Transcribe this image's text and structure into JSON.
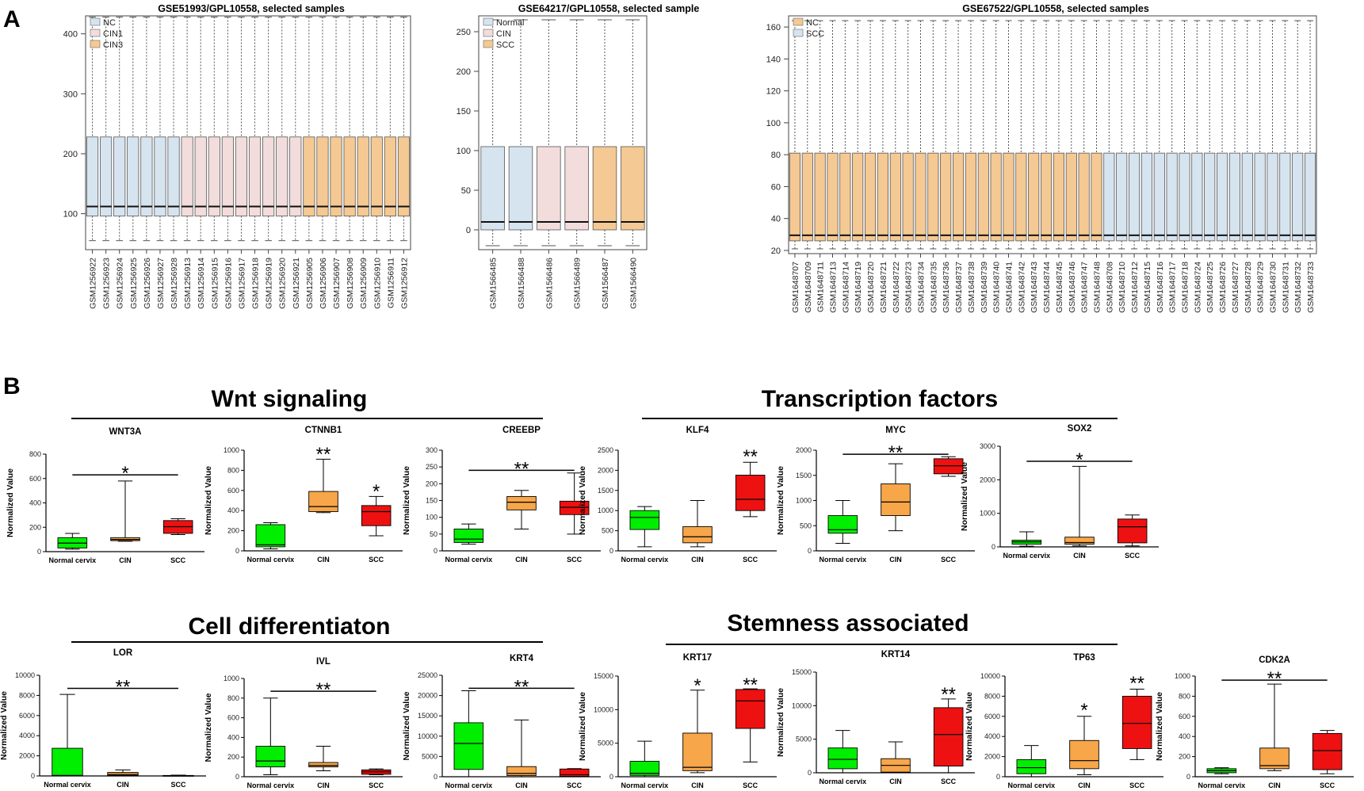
{
  "panels": {
    "A": "A",
    "B": "B"
  },
  "section_titles": {
    "wnt": "Wnt signaling",
    "tf": "Transcription factors",
    "diff": "Cell differentiaton",
    "stem": "Stemness associated"
  },
  "colors": {
    "NC": "#d6e4f0",
    "CIN1": "#f2dcdc",
    "CIN3": "#f5c993",
    "normal": "#00ee00",
    "cin": "#f7a649",
    "scc": "#ee1111"
  },
  "chart_data": [
    {
      "id": "A1",
      "type": "boxplot",
      "title": "GSE51993/GPL10558, selected samples",
      "ylim": [
        40,
        430
      ],
      "yticks": [
        100,
        200,
        300,
        400
      ],
      "legend": [
        {
          "label": "NC",
          "color": "NC"
        },
        {
          "label": "CIN1",
          "color": "CIN1"
        },
        {
          "label": "CIN3",
          "color": "CIN3"
        }
      ],
      "legend_position": "top-left",
      "box": {
        "wlo": 55,
        "q1": 96,
        "med": 112,
        "q3": 228,
        "whi": 428
      },
      "samples": [
        "GSM1256922",
        "GSM1256923",
        "GSM1256924",
        "GSM1256925",
        "GSM1256926",
        "GSM1256927",
        "GSM1256928",
        "GSM1256913",
        "GSM1256914",
        "GSM1256915",
        "GSM1256916",
        "GSM1256917",
        "GSM1256918",
        "GSM1256919",
        "GSM1256920",
        "GSM1256921",
        "GSM1256905",
        "GSM1256906",
        "GSM1256907",
        "GSM1256908",
        "GSM1256909",
        "GSM1256910",
        "GSM1256911",
        "GSM1256912"
      ],
      "groups": [
        "NC",
        "NC",
        "NC",
        "NC",
        "NC",
        "NC",
        "NC",
        "CIN1",
        "CIN1",
        "CIN1",
        "CIN1",
        "CIN1",
        "CIN1",
        "CIN1",
        "CIN1",
        "CIN1",
        "CIN3",
        "CIN3",
        "CIN3",
        "CIN3",
        "CIN3",
        "CIN3",
        "CIN3",
        "CIN3"
      ]
    },
    {
      "id": "A2",
      "type": "boxplot",
      "title": "GSE64217/GPL10558, selected sample",
      "ylim": [
        -25,
        270
      ],
      "yticks": [
        0,
        50,
        100,
        150,
        200,
        250
      ],
      "legend": [
        {
          "label": "Normal",
          "color": "NC"
        },
        {
          "label": "CIN",
          "color": "CIN1"
        },
        {
          "label": "SCC",
          "color": "CIN3"
        }
      ],
      "legend_position": "top-left",
      "box": {
        "wlo": -20,
        "q1": 0,
        "med": 10,
        "q3": 105,
        "whi": 265
      },
      "samples": [
        "GSM1566485",
        "GSM1566488",
        "GSM1566486",
        "GSM1566489",
        "GSM1566487",
        "GSM1566490"
      ],
      "groups": [
        "NC",
        "NC",
        "CIN1",
        "CIN1",
        "CIN3",
        "CIN3"
      ]
    },
    {
      "id": "A3",
      "type": "boxplot",
      "title": "GSE67522/GPL10558, selected samples",
      "ylim": [
        18,
        167
      ],
      "yticks": [
        20,
        40,
        60,
        80,
        100,
        120,
        140,
        160
      ],
      "legend": [
        {
          "label": "NC",
          "color": "CIN3"
        },
        {
          "label": "SCC",
          "color": "NC"
        }
      ],
      "legend_position": "top-left",
      "box": {
        "wlo": 21,
        "q1": 26,
        "med": 29.5,
        "q3": 81,
        "whi": 164
      },
      "samples": [
        "GSM1648707",
        "GSM1648709",
        "GSM1648711",
        "GSM1648713",
        "GSM1648714",
        "GSM1648719",
        "GSM1648720",
        "GSM1648721",
        "GSM1648722",
        "GSM1648723",
        "GSM1648734",
        "GSM1648735",
        "GSM1648736",
        "GSM1648737",
        "GSM1648738",
        "GSM1648739",
        "GSM1648740",
        "GSM1648741",
        "GSM1648742",
        "GSM1648743",
        "GSM1648744",
        "GSM1648745",
        "GSM1648746",
        "GSM1648747",
        "GSM1648748",
        "GSM1648708",
        "GSM1648710",
        "GSM1648712",
        "GSM1648715",
        "GSM1648716",
        "GSM1648717",
        "GSM1648718",
        "GSM1648724",
        "GSM1648725",
        "GSM1648726",
        "GSM1648727",
        "GSM1648728",
        "GSM1648729",
        "GSM1648730",
        "GSM1648731",
        "GSM1648732",
        "GSM1648733"
      ],
      "groups": [
        "CIN3",
        "CIN3",
        "CIN3",
        "CIN3",
        "CIN3",
        "CIN3",
        "CIN3",
        "CIN3",
        "CIN3",
        "CIN3",
        "CIN3",
        "CIN3",
        "CIN3",
        "CIN3",
        "CIN3",
        "CIN3",
        "CIN3",
        "CIN3",
        "CIN3",
        "CIN3",
        "CIN3",
        "CIN3",
        "CIN3",
        "CIN3",
        "CIN3",
        "NC",
        "NC",
        "NC",
        "NC",
        "NC",
        "NC",
        "NC",
        "NC",
        "NC",
        "NC",
        "NC",
        "NC",
        "NC",
        "NC",
        "NC",
        "NC",
        "NC"
      ]
    },
    {
      "id": "WNT3A",
      "type": "boxplot",
      "title": "WNT3A",
      "ylabel": "Normalized Value",
      "categories": [
        "Normal cervix",
        "CIN",
        "SCC"
      ],
      "ylim": [
        0,
        800
      ],
      "yticks": [
        0,
        200,
        400,
        600,
        800
      ],
      "boxes": [
        {
          "wlo": 20,
          "q1": 30,
          "med": 70,
          "q3": 115,
          "whi": 150
        },
        {
          "wlo": 85,
          "q1": 90,
          "med": 100,
          "q3": 115,
          "whi": 580
        },
        {
          "wlo": 140,
          "q1": 150,
          "med": 205,
          "q3": 255,
          "whi": 270
        }
      ],
      "significance": [
        {
          "text": "*",
          "type": "line",
          "value": 630
        }
      ]
    },
    {
      "id": "CTNNB1",
      "type": "boxplot",
      "title": "CTNNB1",
      "ylabel": "Normalized Value",
      "categories": [
        "Normal cervix",
        "CIN",
        "SCC"
      ],
      "ylim": [
        0,
        1000
      ],
      "yticks": [
        0,
        200,
        400,
        600,
        800,
        1000
      ],
      "boxes": [
        {
          "wlo": 20,
          "q1": 40,
          "med": 60,
          "q3": 260,
          "whi": 280
        },
        {
          "wlo": 380,
          "q1": 390,
          "med": 440,
          "q3": 590,
          "whi": 910
        },
        {
          "wlo": 150,
          "q1": 250,
          "med": 390,
          "q3": 450,
          "whi": 540
        }
      ],
      "significance": [
        {
          "text": "**",
          "type": "over",
          "index": 1,
          "value": 960
        },
        {
          "text": "*",
          "type": "over",
          "index": 2,
          "value": 590
        }
      ]
    },
    {
      "id": "CREEBP",
      "type": "boxplot",
      "title": "CREEBP",
      "ylabel": "Normalized Value",
      "categories": [
        "Normal cervix",
        "CIN",
        "SCC"
      ],
      "ylim": [
        0,
        300
      ],
      "yticks": [
        0,
        50,
        100,
        150,
        200,
        250,
        300
      ],
      "boxes": [
        {
          "wlo": 20,
          "q1": 25,
          "med": 35,
          "q3": 65,
          "whi": 80
        },
        {
          "wlo": 65,
          "q1": 122,
          "med": 145,
          "q3": 162,
          "whi": 180
        },
        {
          "wlo": 50,
          "q1": 108,
          "med": 130,
          "q3": 148,
          "whi": 232
        }
      ],
      "significance": [
        {
          "text": "**",
          "type": "line",
          "value": 240
        }
      ]
    },
    {
      "id": "KLF4",
      "type": "boxplot",
      "title": "KLF4",
      "ylabel": "Normalized Value",
      "categories": [
        "Normal cervix",
        "CIN",
        "SCC"
      ],
      "ylim": [
        0,
        2500
      ],
      "yticks": [
        0,
        500,
        1000,
        1500,
        2000,
        2500
      ],
      "boxes": [
        {
          "wlo": 100,
          "q1": 530,
          "med": 830,
          "q3": 1000,
          "whi": 1100
        },
        {
          "wlo": 100,
          "q1": 200,
          "med": 350,
          "q3": 600,
          "whi": 1250
        },
        {
          "wlo": 850,
          "q1": 1000,
          "med": 1280,
          "q3": 1880,
          "whi": 2200
        }
      ],
      "significance": [
        {
          "text": "**",
          "type": "over",
          "index": 2,
          "value": 2340
        }
      ]
    },
    {
      "id": "MYC",
      "type": "boxplot",
      "title": "MYC",
      "ylabel": "Normalized Value",
      "categories": [
        "Normal cervix",
        "CIN",
        "SCC"
      ],
      "ylim": [
        0,
        2000
      ],
      "yticks": [
        0,
        500,
        1000,
        1500,
        2000
      ],
      "boxes": [
        {
          "wlo": 150,
          "q1": 350,
          "med": 420,
          "q3": 700,
          "whi": 1000
        },
        {
          "wlo": 400,
          "q1": 700,
          "med": 970,
          "q3": 1330,
          "whi": 1730
        },
        {
          "wlo": 1480,
          "q1": 1530,
          "med": 1690,
          "q3": 1830,
          "whi": 1870
        }
      ],
      "significance": [
        {
          "text": "**",
          "type": "line",
          "value": 1920
        }
      ]
    },
    {
      "id": "SOX2",
      "type": "boxplot",
      "title": "SOX2",
      "ylabel": "Normalized Value",
      "categories": [
        "Normal cervix",
        "CIN",
        "SCC"
      ],
      "ylim": [
        0,
        3000
      ],
      "yticks": [
        0,
        1000,
        2000,
        3000
      ],
      "boxes": [
        {
          "wlo": 20,
          "q1": 80,
          "med": 150,
          "q3": 200,
          "whi": 450
        },
        {
          "wlo": 30,
          "q1": 80,
          "med": 130,
          "q3": 290,
          "whi": 2400
        },
        {
          "wlo": 30,
          "q1": 120,
          "med": 600,
          "q3": 830,
          "whi": 950
        }
      ],
      "significance": [
        {
          "text": "*",
          "type": "line",
          "value": 2550
        }
      ]
    },
    {
      "id": "LOR",
      "type": "boxplot",
      "title": "LOR",
      "ylabel": "Normalized Value",
      "categories": [
        "Normal cervix",
        "CIN",
        "SCC"
      ],
      "ylim": [
        0,
        10000
      ],
      "yticks": [
        0,
        2000,
        4000,
        6000,
        8000,
        10000
      ],
      "boxes": [
        {
          "wlo": 0,
          "q1": 0,
          "med": 50,
          "q3": 2750,
          "whi": 8100
        },
        {
          "wlo": 0,
          "q1": 50,
          "med": 150,
          "q3": 350,
          "whi": 600
        },
        {
          "wlo": 0,
          "q1": 0,
          "med": 10,
          "q3": 50,
          "whi": 80
        }
      ],
      "significance": [
        {
          "text": "**",
          "type": "line",
          "value": 8700
        }
      ]
    },
    {
      "id": "IVL",
      "type": "boxplot",
      "title": "IVL",
      "ylabel": "Normalized Value",
      "categories": [
        "Normal cervix",
        "CIN",
        "SCC"
      ],
      "ylim": [
        0,
        1000
      ],
      "yticks": [
        0,
        200,
        400,
        600,
        800,
        1000
      ],
      "boxes": [
        {
          "wlo": 20,
          "q1": 100,
          "med": 160,
          "q3": 310,
          "whi": 800
        },
        {
          "wlo": 60,
          "q1": 100,
          "med": 115,
          "q3": 145,
          "whi": 310
        },
        {
          "wlo": 20,
          "q1": 25,
          "med": 50,
          "q3": 70,
          "whi": 80
        }
      ],
      "significance": [
        {
          "text": "**",
          "type": "line",
          "value": 870
        }
      ]
    },
    {
      "id": "KRT4",
      "type": "boxplot",
      "title": "KRT4",
      "ylabel": "Normalized Value",
      "categories": [
        "Normal cervix",
        "CIN",
        "SCC"
      ],
      "ylim": [
        0,
        25000
      ],
      "yticks": [
        0,
        5000,
        10000,
        15000,
        20000,
        25000
      ],
      "boxes": [
        {
          "wlo": 0,
          "q1": 1800,
          "med": 8200,
          "q3": 13300,
          "whi": 21200
        },
        {
          "wlo": 0,
          "q1": 300,
          "med": 800,
          "q3": 2500,
          "whi": 14000
        },
        {
          "wlo": 0,
          "q1": 100,
          "med": 500,
          "q3": 1900,
          "whi": 2000
        }
      ],
      "significance": [
        {
          "text": "**",
          "type": "line",
          "value": 21800
        }
      ]
    },
    {
      "id": "KRT17",
      "type": "boxplot",
      "title": "KRT17",
      "ylabel": "Normalized Value",
      "categories": [
        "Normal cervix",
        "CIN",
        "SCC"
      ],
      "ylim": [
        0,
        15000
      ],
      "yticks": [
        0,
        5000,
        10000,
        15000
      ],
      "boxes": [
        {
          "wlo": 0,
          "q1": 200,
          "med": 500,
          "q3": 2300,
          "whi": 5300
        },
        {
          "wlo": 600,
          "q1": 900,
          "med": 1400,
          "q3": 6500,
          "whi": 12900
        },
        {
          "wlo": 2200,
          "q1": 7200,
          "med": 11300,
          "q3": 13000,
          "whi": 13100
        }
      ],
      "significance": [
        {
          "text": "*",
          "type": "over",
          "index": 1,
          "value": 13600
        },
        {
          "text": "**",
          "type": "over",
          "index": 2,
          "value": 13700
        }
      ]
    },
    {
      "id": "KRT14",
      "type": "boxplot",
      "title": "KRT14",
      "ylabel": "Normalized Value",
      "categories": [
        "Normal cervix",
        "CIN",
        "SCC"
      ],
      "ylim": [
        0,
        15000
      ],
      "yticks": [
        0,
        5000,
        10000,
        15000
      ],
      "boxes": [
        {
          "wlo": 0,
          "q1": 600,
          "med": 2000,
          "q3": 3700,
          "whi": 6300
        },
        {
          "wlo": 0,
          "q1": 100,
          "med": 1100,
          "q3": 2100,
          "whi": 4600
        },
        {
          "wlo": 0,
          "q1": 1000,
          "med": 5700,
          "q3": 9700,
          "whi": 11000
        }
      ],
      "significance": [
        {
          "text": "**",
          "type": "over",
          "index": 2,
          "value": 11700
        }
      ]
    },
    {
      "id": "TP63",
      "type": "boxplot",
      "title": "TP63",
      "ylabel": "Normalized Value",
      "categories": [
        "Normal cervix",
        "CIN",
        "SCC"
      ],
      "ylim": [
        0,
        10000
      ],
      "yticks": [
        0,
        2000,
        4000,
        6000,
        8000,
        10000
      ],
      "boxes": [
        {
          "wlo": 0,
          "q1": 300,
          "med": 900,
          "q3": 1700,
          "whi": 3100
        },
        {
          "wlo": 200,
          "q1": 800,
          "med": 1600,
          "q3": 3600,
          "whi": 6000
        },
        {
          "wlo": 1700,
          "q1": 2800,
          "med": 5300,
          "q3": 8000,
          "whi": 8700
        }
      ],
      "significance": [
        {
          "text": "*",
          "type": "over",
          "index": 1,
          "value": 6600
        },
        {
          "text": "**",
          "type": "over",
          "index": 2,
          "value": 9300
        }
      ]
    },
    {
      "id": "CDK2A",
      "type": "boxplot",
      "title": "CDK2A",
      "ylabel": "Normalized Value",
      "categories": [
        "Normal cervix",
        "CIN",
        "SCC"
      ],
      "ylim": [
        0,
        1000
      ],
      "yticks": [
        0,
        200,
        400,
        600,
        800,
        1000
      ],
      "boxes": [
        {
          "wlo": 30,
          "q1": 40,
          "med": 60,
          "q3": 80,
          "whi": 90
        },
        {
          "wlo": 60,
          "q1": 80,
          "med": 110,
          "q3": 285,
          "whi": 920
        },
        {
          "wlo": 30,
          "q1": 70,
          "med": 260,
          "q3": 430,
          "whi": 460
        }
      ],
      "significance": [
        {
          "text": "**",
          "type": "line",
          "value": 960
        }
      ]
    }
  ]
}
